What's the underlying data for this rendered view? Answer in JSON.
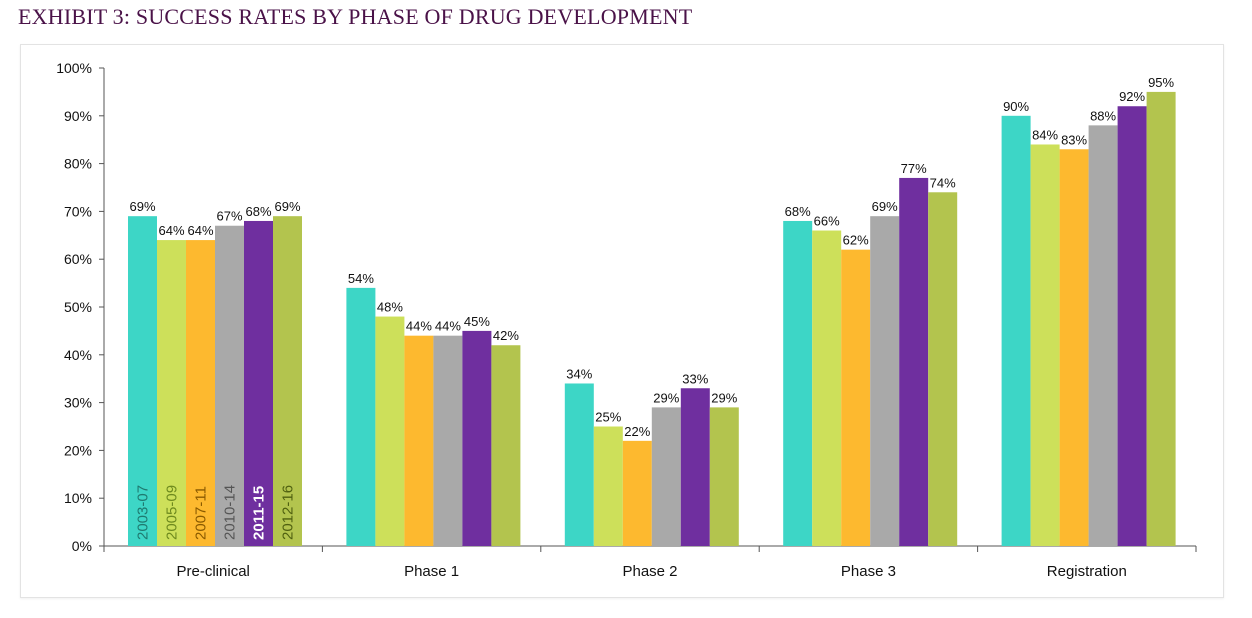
{
  "title": "EXHIBIT 3: SUCCESS RATES BY PHASE OF DRUG DEVELOPMENT",
  "title_color": "#4a1248",
  "chart_data": {
    "type": "bar",
    "title": "EXHIBIT 3: SUCCESS RATES BY PHASE OF DRUG DEVELOPMENT",
    "xlabel": "",
    "ylabel": "",
    "ylim": [
      0,
      100
    ],
    "yticks": [
      "0%",
      "10%",
      "20%",
      "30%",
      "40%",
      "50%",
      "60%",
      "70%",
      "80%",
      "90%",
      "100%"
    ],
    "categories": [
      "Pre-clinical",
      "Phase 1",
      "Phase 2",
      "Phase 3",
      "Registration"
    ],
    "legend_placement": "inside first category bars (vertical labels)",
    "series": [
      {
        "name": "2003-07",
        "color": "#3dd6c6",
        "label_color": "#1f7a70",
        "values": [
          69,
          54,
          34,
          68,
          90
        ]
      },
      {
        "name": "2005-09",
        "color": "#cde05a",
        "label_color": "#6e8a1e",
        "values": [
          64,
          48,
          25,
          66,
          84
        ]
      },
      {
        "name": "2007-11",
        "color": "#fdb92f",
        "label_color": "#8a5a00",
        "values": [
          64,
          44,
          22,
          62,
          83
        ]
      },
      {
        "name": "2010-14",
        "color": "#a9a9a9",
        "label_color": "#555555",
        "values": [
          67,
          44,
          29,
          69,
          88
        ]
      },
      {
        "name": "2011-15",
        "color": "#6f2f9f",
        "label_color": "#ffffff",
        "values": [
          68,
          45,
          33,
          77,
          92
        ]
      },
      {
        "name": "2012-16",
        "color": "#b3c44e",
        "label_color": "#4f6010",
        "values": [
          69,
          42,
          29,
          74,
          95
        ]
      }
    ],
    "data_label_suffix": "%"
  }
}
